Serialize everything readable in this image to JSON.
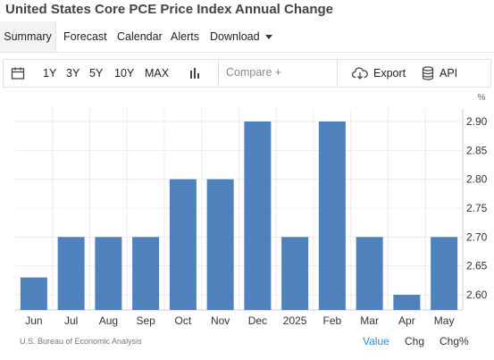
{
  "title": "United States Core PCE Price Index Annual Change",
  "tabs": {
    "summary": "Summary",
    "forecast": "Forecast",
    "calendar": "Calendar",
    "alerts": "Alerts",
    "download": "Download"
  },
  "toolbar": {
    "ranges": [
      "1Y",
      "3Y",
      "5Y",
      "10Y",
      "MAX"
    ],
    "compare_placeholder": "Compare +",
    "export_label": "Export",
    "api_label": "API",
    "icons": [
      "calendar-icon",
      "bar-chart-icon",
      "cloud-download-icon",
      "database-icon"
    ]
  },
  "chart_data": {
    "type": "bar",
    "categories": [
      "Jun",
      "Jul",
      "Aug",
      "Sep",
      "Oct",
      "Nov",
      "Dec",
      "2025",
      "Feb",
      "Mar",
      "Apr",
      "May"
    ],
    "values": [
      2.63,
      2.7,
      2.7,
      2.7,
      2.8,
      2.8,
      2.9,
      2.7,
      2.9,
      2.7,
      2.6,
      2.7
    ],
    "y_ticks": [
      "2.60",
      "2.65",
      "2.70",
      "2.75",
      "2.80",
      "2.85",
      "2.90"
    ],
    "y_unit": "%",
    "ylim": [
      2.58,
      2.915
    ],
    "y_axis_position": "right",
    "grid": true,
    "bar_color": "#4f81bd"
  },
  "footer": {
    "source": "U.S. Bureau of Economic Analysis",
    "value_label": "Value",
    "chg_label": "Chg",
    "chgpct_label": "Chg%",
    "active_color": "#2d8bd6"
  }
}
